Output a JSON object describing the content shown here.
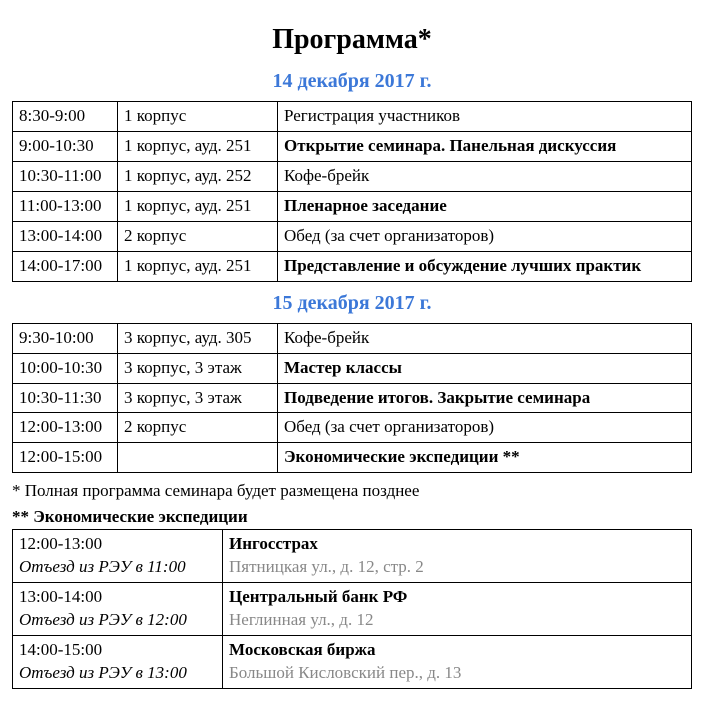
{
  "colors": {
    "date_heading": "#3c78d8",
    "address_text": "#888888",
    "text": "#000000",
    "border": "#000000",
    "background": "#ffffff"
  },
  "title": "Программа*",
  "day1": {
    "heading": "14 декабря 2017 г.",
    "rows": [
      {
        "time": "8:30-9:00",
        "place": "1 корпус",
        "desc": "Регистрация участников",
        "desc_bold": false
      },
      {
        "time": "9:00-10:30",
        "place": "1 корпус, ауд. 251",
        "desc": "Открытие семинара. Панельная дискуссия",
        "desc_bold": true
      },
      {
        "time": "10:30-11:00",
        "place": "1 корпус, ауд. 252",
        "desc": "Кофе-брейк",
        "desc_bold": false
      },
      {
        "time": "11:00-13:00",
        "place": "1 корпус, ауд. 251",
        "desc": "Пленарное заседание",
        "desc_bold": true
      },
      {
        "time": "13:00-14:00",
        "place": "2 корпус",
        "desc": "Обед (за счет организаторов)",
        "desc_bold": false
      },
      {
        "time": "14:00-17:00",
        "place": "1 корпус, ауд. 251",
        "desc": "Представление и обсуждение лучших практик",
        "desc_bold": true
      }
    ]
  },
  "day2": {
    "heading": "15 декабря 2017 г.",
    "rows": [
      {
        "time": "9:30-10:00",
        "place": "3 корпус, ауд. 305",
        "desc": "Кофе-брейк",
        "desc_bold": false
      },
      {
        "time": "10:00-10:30",
        "place": "3 корпус, 3 этаж",
        "desc": "Мастер классы",
        "desc_bold": true
      },
      {
        "time": "10:30-11:30",
        "place": "3 корпус, 3 этаж",
        "desc": "Подведение итогов. Закрытие семинара",
        "desc_bold": true
      },
      {
        "time": "12:00-13:00",
        "place": "2 корпус",
        "desc": "Обед (за счет организаторов)",
        "desc_bold": false
      },
      {
        "time": "12:00-15:00",
        "place": "",
        "desc": "Экономические экспедиции **",
        "desc_bold": true
      }
    ]
  },
  "footnote1": "* Полная программа семинара будет размещена позднее",
  "footnote2_heading": "** Экономические экспедиции",
  "expeditions": [
    {
      "time": "12:00-13:00",
      "departure": "Отъезд из РЭУ в 11:00",
      "org": "Ингосстрах",
      "address": "Пятницкая ул., д. 12, стр. 2"
    },
    {
      "time": "13:00-14:00",
      "departure": "Отъезд из РЭУ в 12:00",
      "org": "Центральный банк РФ",
      "address": "Неглинная ул., д. 12"
    },
    {
      "time": "14:00-15:00",
      "departure": "Отъезд из РЭУ в 13:00",
      "org": "Московская биржа",
      "address": "Большой Кисловский пер., д. 13"
    }
  ]
}
